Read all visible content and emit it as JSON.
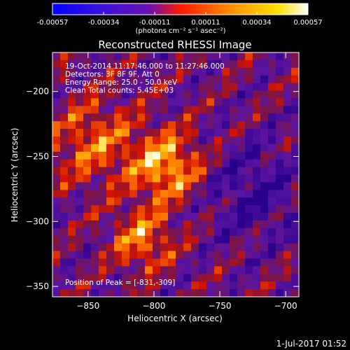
{
  "chart_data": {
    "type": "heatmap",
    "title": "Reconstructed RHESSI Image",
    "xlabel": "Heliocentric X (arcsec)",
    "ylabel": "Heliocentric Y (arcsec)",
    "xlim": [
      -877,
      -690
    ],
    "ylim": [
      -358,
      -170
    ],
    "x_ticks": [
      -850,
      -800,
      -750,
      -700
    ],
    "y_ticks": [
      -200,
      -250,
      -300,
      -350
    ],
    "colorbar": {
      "ticks": [
        "-0.00057",
        "-0.00034",
        "-0.00011",
        "0.00011",
        "0.00034",
        "0.00057"
      ],
      "min": -0.00057,
      "max": 0.00057,
      "units_label": "(photons cm⁻² s⁻¹ asec⁻²)"
    },
    "annotations": [
      "19-Oct-2014 11:17:46.000 to 11:27:46.000",
      "Detectors: 3F 8F 9F, Att 0",
      "Energy Range: 25.0 - 50.0 keV",
      "Clean     Total counts: 5.45E+03"
    ],
    "peak_label": "Position of Peak = [-831,-309]",
    "grid_size": [
      32,
      32
    ]
  },
  "timestamp": "1-Jul-2017 01:52"
}
